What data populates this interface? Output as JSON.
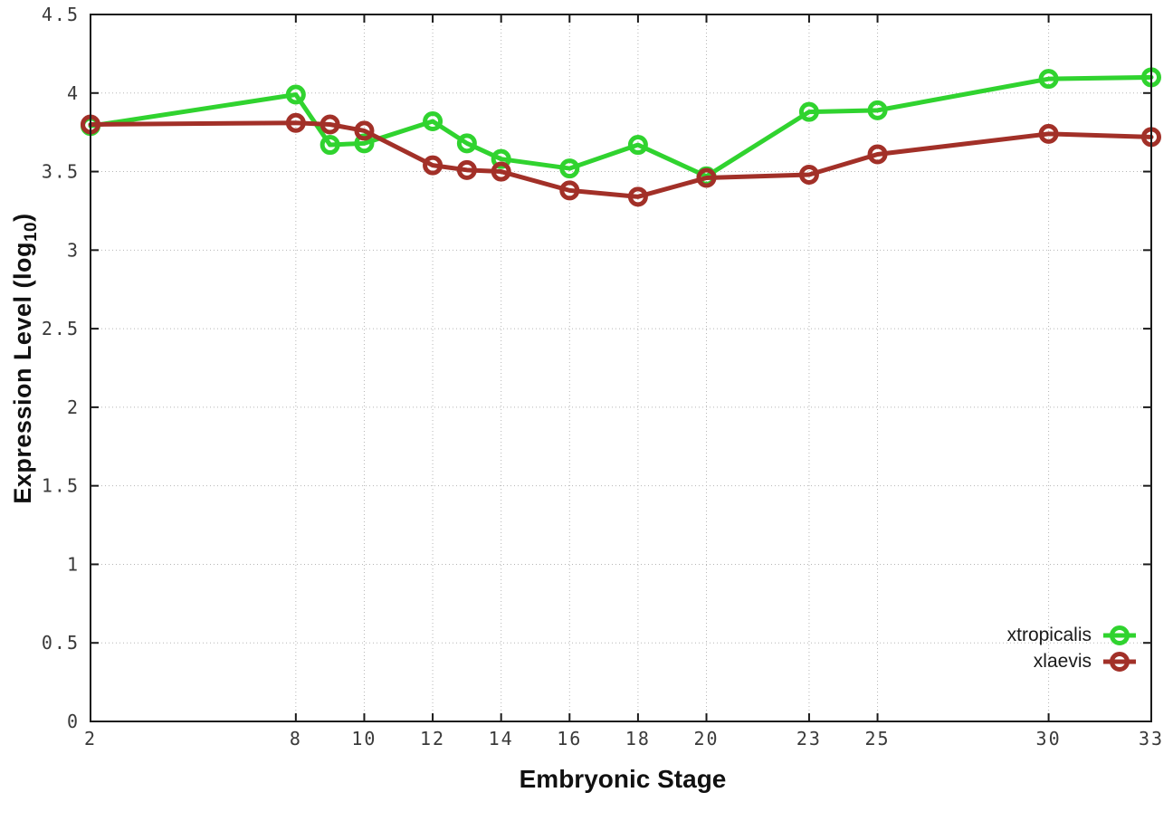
{
  "chart_data": {
    "type": "line",
    "title": "",
    "xlabel": "Embryonic Stage",
    "ylabel": "Expression Level (log10)",
    "ylabel_parts": {
      "base": "Expression Level (log",
      "sub": "10",
      "close": ")"
    },
    "xlim": [
      2,
      33
    ],
    "ylim": [
      0,
      4.5
    ],
    "x_ticks": [
      "2",
      "8",
      "10",
      "12",
      "14",
      "16",
      "18",
      "20",
      "23",
      "25",
      "30",
      "33"
    ],
    "y_ticks": [
      "0",
      "0.5",
      "1",
      "1.5",
      "2",
      "2.5",
      "3",
      "3.5",
      "4",
      "4.5"
    ],
    "grid": "dotted",
    "legend_position": "inside-bottom-right",
    "marker": "open-circle",
    "x": [
      2,
      8,
      9,
      10,
      12,
      13,
      14,
      16,
      18,
      20,
      23,
      25,
      30,
      33
    ],
    "series": [
      {
        "name": "xtropicalis",
        "color": "#30d32f",
        "values": [
          3.79,
          3.99,
          3.67,
          3.68,
          3.82,
          3.68,
          3.58,
          3.52,
          3.67,
          3.47,
          3.88,
          3.89,
          4.09,
          4.1
        ]
      },
      {
        "name": "xlaevis",
        "color": "#a23028",
        "values": [
          3.8,
          3.81,
          3.8,
          3.76,
          3.54,
          3.51,
          3.5,
          3.38,
          3.34,
          3.46,
          3.48,
          3.61,
          3.74,
          3.72
        ]
      }
    ]
  },
  "colors": {
    "background": "#ffffff",
    "axis": "#1a1a1a",
    "grid": "#b5b5b5",
    "tick_label": "#3a3a3a",
    "title_text": "#111111"
  }
}
